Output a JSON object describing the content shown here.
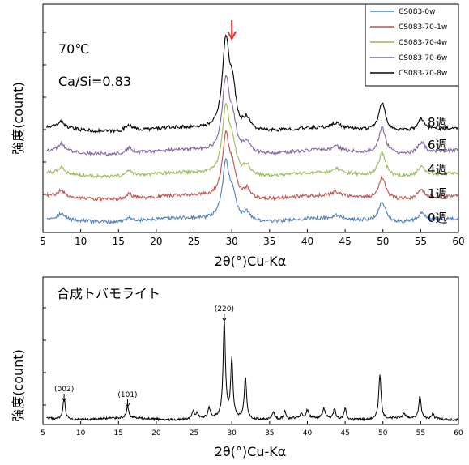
{
  "chart_data": [
    {
      "type": "line",
      "xlabel": "2θ(°)Cu-Kα",
      "ylabel": "強度(count)",
      "xlim": [
        5,
        60
      ],
      "xticks": [
        5,
        10,
        15,
        20,
        25,
        30,
        35,
        40,
        45,
        50,
        55,
        60
      ],
      "yticks_labeled": false,
      "grid": false,
      "legend": "top-right",
      "annotations": [
        "70℃",
        "Ca/Si=0.83"
      ],
      "arrow": {
        "x": 30,
        "color": "#e53030"
      },
      "series": [
        {
          "name": "CS083-0w",
          "color": "#4a7ebb",
          "offset": 0,
          "week_label": "0週"
        },
        {
          "name": "CS083-70-1w",
          "color": "#c0504d",
          "offset": 1,
          "week_label": "1週"
        },
        {
          "name": "CS083-70-4w",
          "color": "#9bbb59",
          "offset": 2,
          "week_label": "4週"
        },
        {
          "name": "CS083-70-6w",
          "color": "#8064a2",
          "offset": 3,
          "week_label": "6週"
        },
        {
          "name": "CS083-70-8w",
          "color": "#000000",
          "offset": 4,
          "week_label": "8週"
        }
      ],
      "peaks": [
        {
          "x": 7.4,
          "h": 0.3
        },
        {
          "x": 16.4,
          "h": 0.25
        },
        {
          "x": 29.2,
          "h": 3.0
        },
        {
          "x": 30.1,
          "h": 1.2
        },
        {
          "x": 32.0,
          "h": 0.45
        },
        {
          "x": 43.8,
          "h": 0.2
        },
        {
          "x": 49.9,
          "h": 1.1
        },
        {
          "x": 55.1,
          "h": 0.45
        }
      ]
    },
    {
      "type": "line",
      "xlabel": "2θ(°)Cu-Kα",
      "ylabel": "強度(count)",
      "xlim": [
        5,
        60
      ],
      "xticks": [
        5,
        10,
        15,
        20,
        25,
        30,
        35,
        40,
        45,
        50,
        55,
        60
      ],
      "yticks_labeled": false,
      "grid": false,
      "annotations": [
        "合成トバモライト"
      ],
      "peak_labels": [
        {
          "x": 7.8,
          "label": "(002)"
        },
        {
          "x": 16.2,
          "label": "(101)"
        },
        {
          "x": 29.0,
          "label": "(220)"
        }
      ],
      "series": [
        {
          "color": "#000000"
        }
      ],
      "peaks": [
        {
          "x": 7.8,
          "h": 0.22
        },
        {
          "x": 16.2,
          "h": 0.12
        },
        {
          "x": 24.9,
          "h": 0.08
        },
        {
          "x": 25.4,
          "h": 0.06
        },
        {
          "x": 27.0,
          "h": 0.1
        },
        {
          "x": 29.0,
          "h": 1.0
        },
        {
          "x": 30.0,
          "h": 0.6
        },
        {
          "x": 31.8,
          "h": 0.43
        },
        {
          "x": 35.5,
          "h": 0.08
        },
        {
          "x": 37.0,
          "h": 0.08
        },
        {
          "x": 39.2,
          "h": 0.06
        },
        {
          "x": 40.0,
          "h": 0.08
        },
        {
          "x": 42.2,
          "h": 0.1
        },
        {
          "x": 43.6,
          "h": 0.1
        },
        {
          "x": 45.0,
          "h": 0.11
        },
        {
          "x": 49.6,
          "h": 0.46
        },
        {
          "x": 52.8,
          "h": 0.04
        },
        {
          "x": 54.9,
          "h": 0.23
        },
        {
          "x": 56.6,
          "h": 0.06
        }
      ]
    }
  ]
}
